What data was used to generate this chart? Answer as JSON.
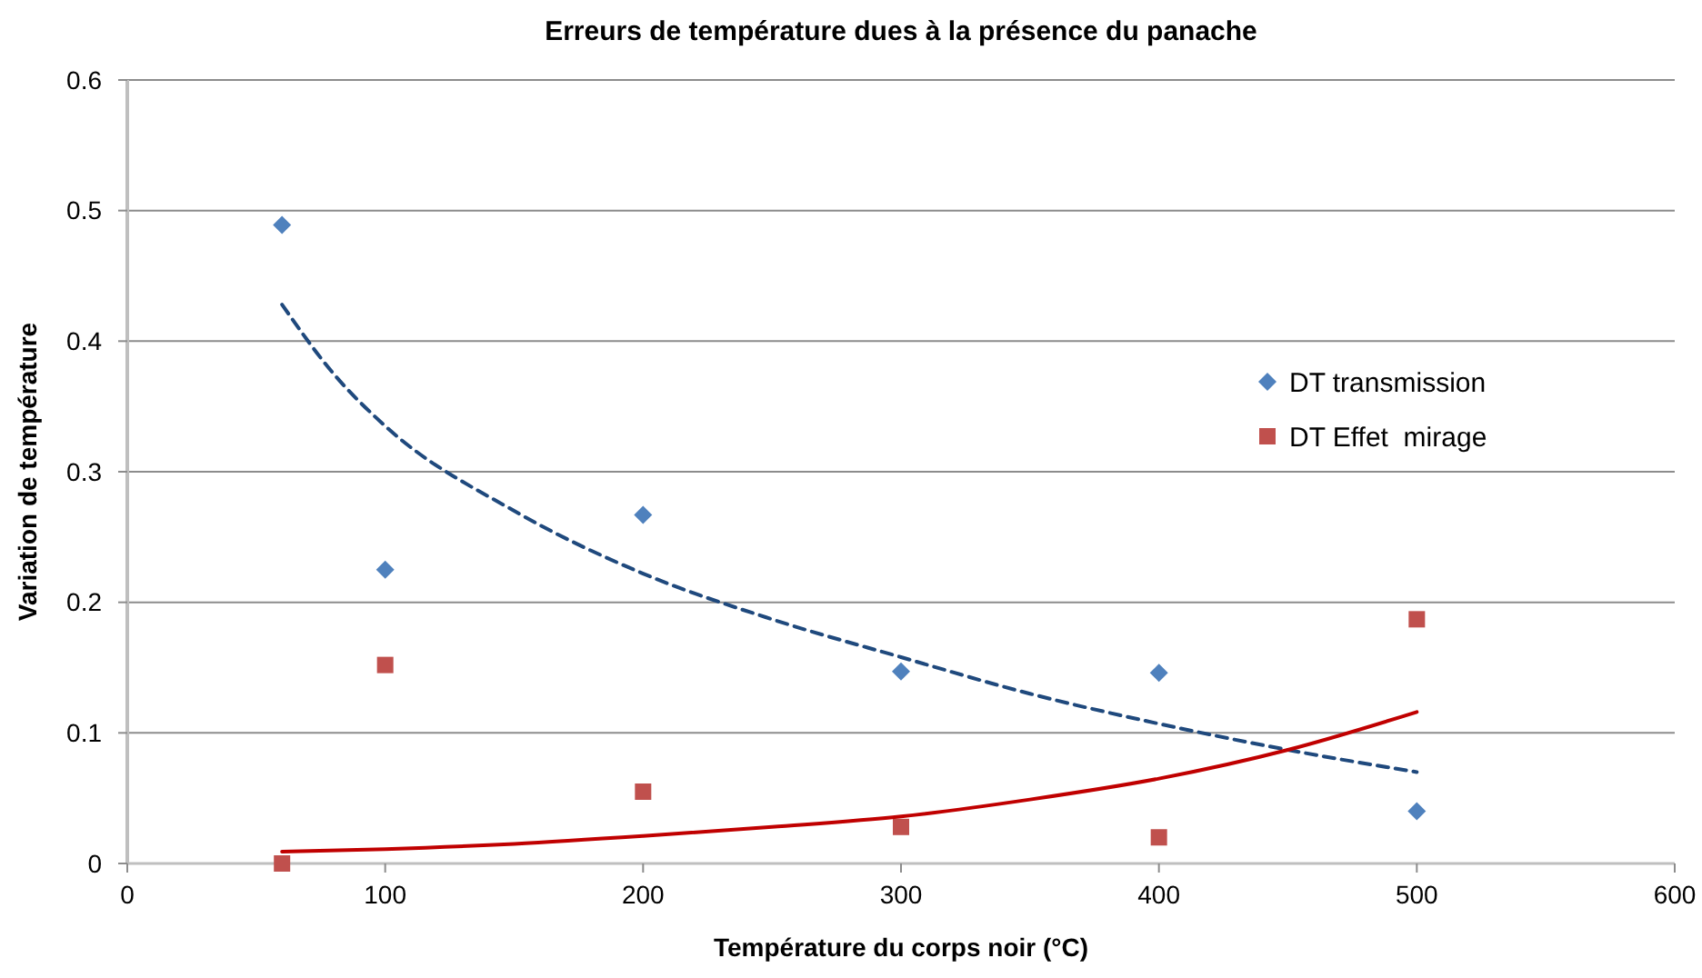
{
  "chart_data": {
    "type": "scatter",
    "title": "Erreurs de température dues à la présence du panache",
    "xlabel": "Température du corps noir (°C)",
    "ylabel": "Variation de température",
    "xlim": [
      0,
      600
    ],
    "xticks": [
      0,
      100,
      200,
      300,
      400,
      500,
      600
    ],
    "ylim": [
      0,
      0.6
    ],
    "yticks": [
      0,
      0.1,
      0.2,
      0.3,
      0.4,
      0.5,
      0.6
    ],
    "grid": "y",
    "legend": "top right",
    "series": [
      {
        "name": "DT transmission",
        "marker": "diamond",
        "color": "#4f81bd",
        "x": [
          60,
          100,
          200,
          300,
          400,
          500
        ],
        "values": [
          0.489,
          0.225,
          0.267,
          0.147,
          0.146,
          0.04
        ]
      },
      {
        "name": "DT Effet  mirage",
        "marker": "square",
        "color": "#c0504d",
        "x": [
          60,
          100,
          200,
          300,
          400,
          500
        ],
        "values": [
          0.0,
          0.152,
          0.055,
          0.028,
          0.02,
          0.187
        ]
      },
      {
        "type": "line",
        "line_style": "dashed",
        "color": "#1f497d",
        "x": [
          60,
          80,
          100,
          150,
          200,
          250,
          300,
          350,
          400,
          450,
          500
        ],
        "values": [
          0.428,
          0.375,
          0.335,
          0.27,
          0.222,
          0.187,
          0.158,
          0.13,
          0.107,
          0.087,
          0.07
        ]
      },
      {
        "type": "line",
        "line_style": "solid",
        "color": "#c00000",
        "x": [
          60,
          100,
          150,
          200,
          250,
          300,
          350,
          400,
          450,
          500
        ],
        "values": [
          0.009,
          0.011,
          0.015,
          0.021,
          0.028,
          0.036,
          0.049,
          0.065,
          0.087,
          0.116
        ]
      }
    ]
  }
}
